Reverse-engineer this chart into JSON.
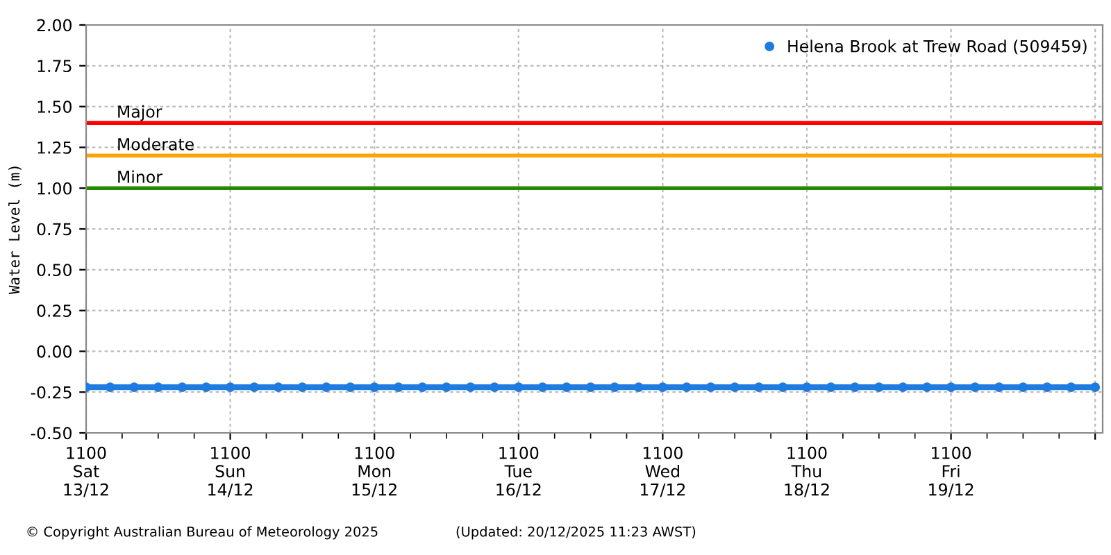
{
  "chart_data": {
    "type": "line",
    "ylabel": "Water Level (m)",
    "x": [
      "2025-12-13T11:00",
      "2025-12-13T15:00",
      "2025-12-13T19:00",
      "2025-12-13T23:00",
      "2025-12-14T03:00",
      "2025-12-14T07:00",
      "2025-12-14T11:00",
      "2025-12-14T15:00",
      "2025-12-14T19:00",
      "2025-12-14T23:00",
      "2025-12-15T03:00",
      "2025-12-15T07:00",
      "2025-12-15T11:00",
      "2025-12-15T15:00",
      "2025-12-15T19:00",
      "2025-12-15T23:00",
      "2025-12-16T03:00",
      "2025-12-16T07:00",
      "2025-12-16T11:00",
      "2025-12-16T15:00",
      "2025-12-16T19:00",
      "2025-12-16T23:00",
      "2025-12-17T03:00",
      "2025-12-17T07:00",
      "2025-12-17T11:00",
      "2025-12-17T15:00",
      "2025-12-17T19:00",
      "2025-12-17T23:00",
      "2025-12-18T03:00",
      "2025-12-18T07:00",
      "2025-12-18T11:00",
      "2025-12-18T15:00",
      "2025-12-18T19:00",
      "2025-12-18T23:00",
      "2025-12-19T03:00",
      "2025-12-19T07:00",
      "2025-12-19T11:00",
      "2025-12-19T15:00",
      "2025-12-19T19:00",
      "2025-12-19T23:00",
      "2025-12-20T03:00",
      "2025-12-20T07:00",
      "2025-12-20T11:00"
    ],
    "series": [
      {
        "name": "Helena Brook at Trew Road (509459)",
        "color": "#1e7be0",
        "values": [
          -0.22,
          -0.22,
          -0.22,
          -0.22,
          -0.22,
          -0.22,
          -0.22,
          -0.22,
          -0.22,
          -0.22,
          -0.22,
          -0.22,
          -0.22,
          -0.22,
          -0.22,
          -0.22,
          -0.22,
          -0.22,
          -0.22,
          -0.22,
          -0.22,
          -0.22,
          -0.22,
          -0.22,
          -0.22,
          -0.22,
          -0.22,
          -0.22,
          -0.22,
          -0.22,
          -0.22,
          -0.22,
          -0.22,
          -0.22,
          -0.22,
          -0.22,
          -0.22,
          -0.22,
          -0.22,
          -0.22,
          -0.22,
          -0.22,
          -0.22
        ]
      }
    ],
    "marker": "circle",
    "line_style": "solid",
    "xlim": [
      "2025-12-13T11:00",
      "2025-12-20T12:15"
    ],
    "xticks": [
      {
        "value": "2025-12-13T11:00",
        "label": "1100\nSat\n13/12"
      },
      {
        "value": "2025-12-14T11:00",
        "label": "1100\nSun\n14/12"
      },
      {
        "value": "2025-12-15T11:00",
        "label": "1100\nMon\n15/12"
      },
      {
        "value": "2025-12-16T11:00",
        "label": "1100\nTue\n16/12"
      },
      {
        "value": "2025-12-17T11:00",
        "label": "1100\nWed\n17/12"
      },
      {
        "value": "2025-12-18T11:00",
        "label": "1100\nThu\n18/12"
      },
      {
        "value": "2025-12-19T11:00",
        "label": "1100\nFri\n19/12"
      },
      {
        "value": "2025-12-20T11:00",
        "label": null
      }
    ],
    "ylim": [
      -0.5,
      2.0
    ],
    "yticks": [
      {
        "value": -0.5,
        "label": "-0.50"
      },
      {
        "value": -0.25,
        "label": "-0.25"
      },
      {
        "value": 0,
        "label": "0.00"
      },
      {
        "value": 0.25,
        "label": "0.25"
      },
      {
        "value": 0.5,
        "label": "0.50"
      },
      {
        "value": 0.75,
        "label": "0.75"
      },
      {
        "value": 1,
        "label": "1.00"
      },
      {
        "value": 1.25,
        "label": "1.25"
      },
      {
        "value": 1.5,
        "label": "1.50"
      },
      {
        "value": 1.75,
        "label": "1.75"
      },
      {
        "value": 2,
        "label": "2.00"
      }
    ],
    "ref_lines": [
      {
        "axis": "y",
        "value": 1.4,
        "label": "Major",
        "color": "#ff0000"
      },
      {
        "axis": "y",
        "value": 1.2,
        "label": "Moderate",
        "color": "#ffa500"
      },
      {
        "axis": "y",
        "value": 1.0,
        "label": "Minor",
        "color": "#228b00"
      }
    ],
    "grid": true,
    "legend": "top right",
    "annotations": [
      "© Copyright Australian Bureau of Meteorology 2025",
      "(Updated: 20/12/2025 11:23 AWST)"
    ]
  }
}
